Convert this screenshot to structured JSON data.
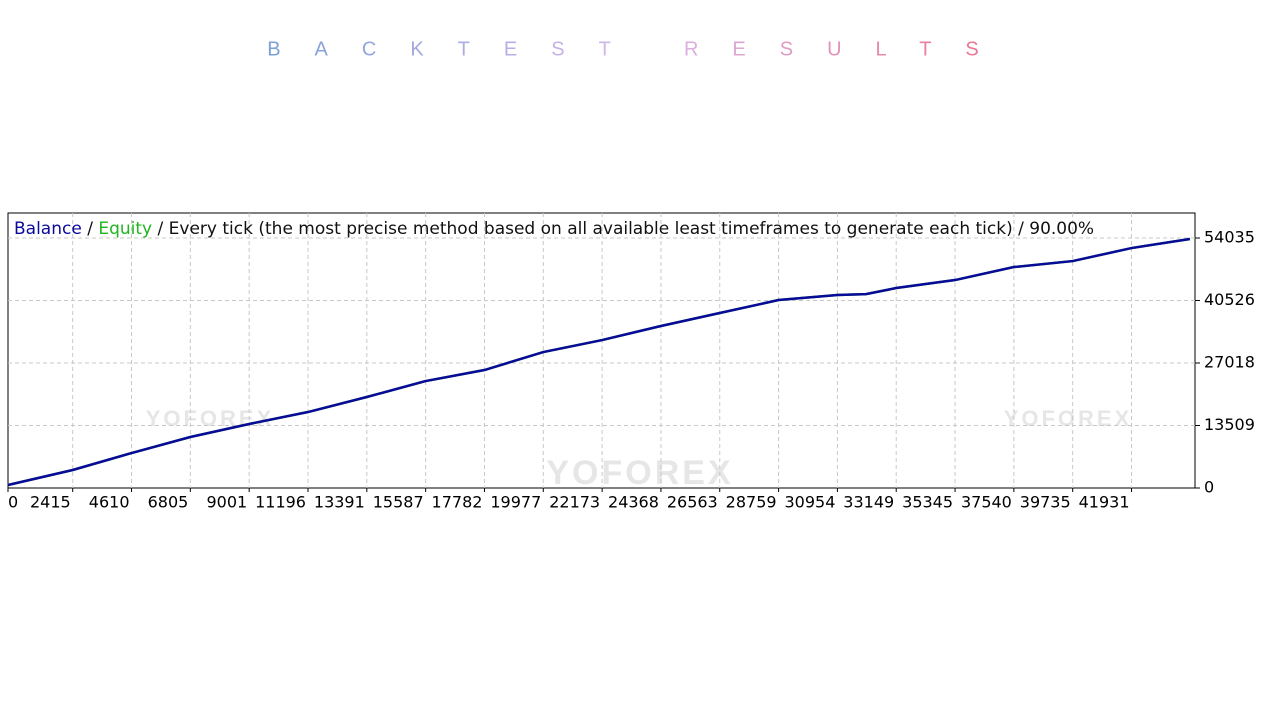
{
  "chart_data": {
    "type": "line",
    "title": "BACKTEST RESULTS",
    "separator": "/",
    "subtitle": "Every tick (the most precise method based on all available least timeframes to generate each tick)",
    "quality": "90.00%",
    "watermark": "YOFOREX",
    "x": [
      0,
      2415,
      4610,
      6805,
      9001,
      11196,
      13391,
      15587,
      17782,
      19977,
      22173,
      24368,
      26563,
      28759,
      30954,
      32020,
      33149,
      35345,
      37540,
      39735,
      41931,
      44110
    ],
    "series": [
      {
        "name": "Equity",
        "color": "#1fb51f",
        "values": [
          650,
          3890,
          7560,
          11020,
          13830,
          16420,
          19670,
          23120,
          25500,
          29390,
          31980,
          35010,
          37820,
          40630,
          41710,
          41900,
          43220,
          44950,
          47760,
          49050,
          51860,
          53810
        ]
      },
      {
        "name": "Balance",
        "color": "#0a0a9a",
        "values": [
          650,
          3890,
          7560,
          11020,
          13830,
          16420,
          19670,
          23120,
          25500,
          29390,
          31980,
          35010,
          37820,
          40630,
          41710,
          41900,
          43220,
          44950,
          47760,
          49050,
          51860,
          53810
        ]
      }
    ],
    "xlim": [
      0,
      44300
    ],
    "ylim": [
      0,
      59440
    ],
    "xticks": [
      0,
      2415,
      4610,
      6805,
      9001,
      11196,
      13391,
      15587,
      17782,
      19977,
      22173,
      24368,
      26563,
      28759,
      30954,
      33149,
      35345,
      37540,
      39735,
      41931
    ],
    "yticks": [
      0,
      13509,
      27018,
      40526,
      54035
    ],
    "grid": true
  }
}
